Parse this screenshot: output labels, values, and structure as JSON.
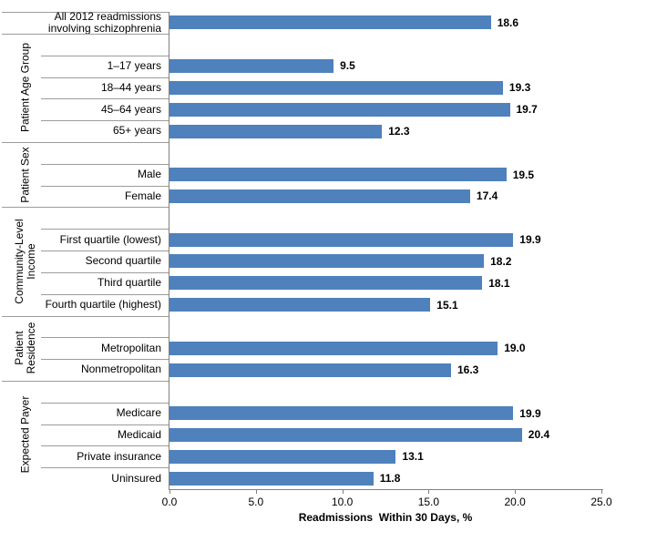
{
  "chart_data": {
    "type": "bar",
    "orientation": "horizontal",
    "title": "",
    "xlabel": "Readmissions  Within 30 Days, %",
    "xlim": [
      0,
      25
    ],
    "x_ticks": [
      "0.0",
      "5.0",
      "10.0",
      "15.0",
      "20.0",
      "25.0"
    ],
    "bar_color": "#4f81bd",
    "grid": false,
    "legend": "none",
    "groups": [
      {
        "label": "",
        "items": [
          {
            "label": "All 2012 readmissions involving schizophrenia",
            "value": 18.6
          }
        ]
      },
      {
        "label": "Patient Age Group",
        "items": [
          {
            "label": "1–17 years",
            "value": 9.5
          },
          {
            "label": "18–44 years",
            "value": 19.3
          },
          {
            "label": "45–64 years",
            "value": 19.7
          },
          {
            "label": "65+ years",
            "value": 12.3
          }
        ]
      },
      {
        "label": "Patient Sex",
        "items": [
          {
            "label": "Male",
            "value": 19.5
          },
          {
            "label": "Female",
            "value": 17.4
          }
        ]
      },
      {
        "label": "Community-Level Income",
        "items": [
          {
            "label": "First quartile (lowest)",
            "value": 19.9
          },
          {
            "label": "Second quartile",
            "value": 18.2
          },
          {
            "label": "Third quartile",
            "value": 18.1
          },
          {
            "label": "Fourth quartile (highest)",
            "value": 15.1
          }
        ]
      },
      {
        "label": "Patient Residence",
        "items": [
          {
            "label": "Metropolitan",
            "value": 19.0
          },
          {
            "label": "Nonmetropolitan",
            "value": 16.3
          }
        ]
      },
      {
        "label": "Expected Payer",
        "items": [
          {
            "label": "Medicare",
            "value": 19.9
          },
          {
            "label": "Medicaid",
            "value": 20.4
          },
          {
            "label": "Private insurance",
            "value": 13.1
          },
          {
            "label": "Uninsured",
            "value": 11.8
          }
        ]
      }
    ]
  }
}
